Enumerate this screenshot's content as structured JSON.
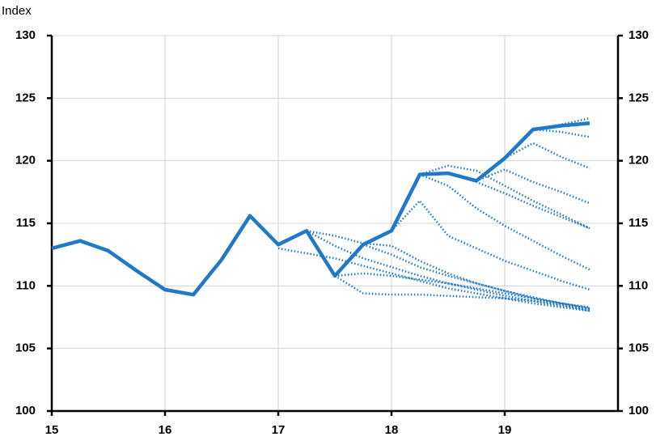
{
  "chart_data": {
    "type": "line",
    "y_label": "Index",
    "xlim": [
      15,
      20
    ],
    "xticks": [
      15,
      16,
      17,
      18,
      19
    ],
    "ylim": [
      100,
      130
    ],
    "yticks": [
      100,
      105,
      110,
      115,
      120,
      125,
      130
    ],
    "y2lim": [
      100,
      130
    ],
    "y2ticks": [
      100,
      105,
      110,
      115,
      120,
      125,
      130
    ],
    "grid": true,
    "series": [
      {
        "color": "#1f78c8",
        "style": "solid",
        "x": [
          15,
          15.25,
          15.5,
          15.75,
          16,
          16.25,
          16.5,
          16.75,
          17,
          17.25,
          17.5,
          17.75,
          18,
          18.25,
          18.5,
          18.75,
          19,
          19.25,
          19.5,
          19.75
        ],
        "values": [
          113.0,
          113.6,
          112.8,
          111.2,
          109.7,
          109.3,
          112.1,
          115.6,
          113.3,
          114.4,
          110.8,
          113.3,
          114.4,
          118.9,
          119.0,
          118.4,
          120.2,
          122.5,
          122.8,
          123.0
        ]
      },
      {
        "color": "#1f78c8",
        "style": "dotted",
        "x": [
          17,
          17.25,
          17.5,
          17.75,
          18,
          18.25,
          18.5,
          18.75,
          19,
          19.25,
          19.5,
          19.75
        ],
        "values": [
          113.0,
          112.6,
          112.2,
          111.6,
          111.0,
          110.4,
          109.8,
          109.4,
          109.0,
          108.6,
          108.3,
          108.0
        ]
      },
      {
        "color": "#1f78c8",
        "style": "dotted",
        "x": [
          17.25,
          17.5,
          17.75,
          18,
          18.25,
          18.5,
          18.75,
          19,
          19.25,
          19.5,
          19.75
        ],
        "values": [
          114.4,
          113.2,
          112.2,
          111.5,
          110.8,
          110.2,
          109.7,
          109.2,
          108.8,
          108.4,
          108.1
        ]
      },
      {
        "color": "#1f78c8",
        "style": "dotted",
        "x": [
          17.25,
          17.5,
          17.75,
          18,
          18.25,
          18.5,
          18.75,
          19,
          19.25,
          19.5,
          19.75
        ],
        "values": [
          114.4,
          114.0,
          113.4,
          113.2,
          112.0,
          111.0,
          110.2,
          109.6,
          109.0,
          108.6,
          108.2
        ]
      },
      {
        "color": "#1f78c8",
        "style": "dotted",
        "x": [
          17.5,
          17.75,
          18,
          18.25,
          18.5,
          18.75,
          19,
          19.25,
          19.5,
          19.75
        ],
        "values": [
          110.8,
          109.4,
          109.3,
          109.3,
          109.2,
          109.1,
          109.0,
          108.8,
          108.5,
          108.0
        ]
      },
      {
        "color": "#1f78c8",
        "style": "dotted",
        "x": [
          17.5,
          17.75,
          18,
          18.25,
          18.5,
          18.75,
          19,
          19.25,
          19.5,
          19.75
        ],
        "values": [
          110.8,
          111.0,
          110.8,
          110.5,
          110.2,
          109.8,
          109.4,
          109.0,
          108.6,
          108.2
        ]
      },
      {
        "color": "#1f78c8",
        "style": "dotted",
        "x": [
          17.75,
          18,
          18.25,
          18.5,
          18.75,
          19,
          19.25,
          19.5,
          19.75
        ],
        "values": [
          113.3,
          112.5,
          111.5,
          110.8,
          110.2,
          109.6,
          109.1,
          108.6,
          108.3
        ]
      },
      {
        "color": "#1f78c8",
        "style": "dotted",
        "x": [
          18,
          18.25,
          18.5,
          18.75,
          19,
          19.25,
          19.5,
          19.75
        ],
        "values": [
          114.4,
          116.8,
          114.0,
          113.0,
          112.0,
          111.2,
          110.4,
          109.7
        ]
      },
      {
        "color": "#1f78c8",
        "style": "dotted",
        "x": [
          18.25,
          18.5,
          18.75,
          19,
          19.25,
          19.5,
          19.75
        ],
        "values": [
          118.9,
          118.0,
          116.2,
          114.8,
          113.6,
          112.4,
          111.3
        ]
      },
      {
        "color": "#1f78c8",
        "style": "dotted",
        "x": [
          18.25,
          18.5,
          18.75,
          19,
          19.25,
          19.5,
          19.75
        ],
        "values": [
          118.9,
          119.6,
          119.2,
          118.0,
          116.8,
          115.7,
          114.6
        ]
      },
      {
        "color": "#1f78c8",
        "style": "dotted",
        "x": [
          18.5,
          18.75,
          19,
          19.25,
          19.5,
          19.75
        ],
        "values": [
          119.0,
          118.3,
          117.4,
          116.4,
          115.5,
          114.6
        ]
      },
      {
        "color": "#1f78c8",
        "style": "dotted",
        "x": [
          18.75,
          19,
          19.25,
          19.5,
          19.75
        ],
        "values": [
          118.4,
          119.3,
          118.3,
          117.5,
          116.6
        ]
      },
      {
        "color": "#1f78c8",
        "style": "dotted",
        "x": [
          19,
          19.25,
          19.5,
          19.75
        ],
        "values": [
          120.2,
          121.4,
          120.3,
          119.4
        ]
      },
      {
        "color": "#1f78c8",
        "style": "dotted",
        "x": [
          19.25,
          19.5,
          19.75
        ],
        "values": [
          122.5,
          122.3,
          121.9
        ]
      },
      {
        "color": "#1f78c8",
        "style": "dotted",
        "x": [
          19.25,
          19.5,
          19.75
        ],
        "values": [
          122.5,
          122.9,
          123.4
        ]
      }
    ]
  }
}
